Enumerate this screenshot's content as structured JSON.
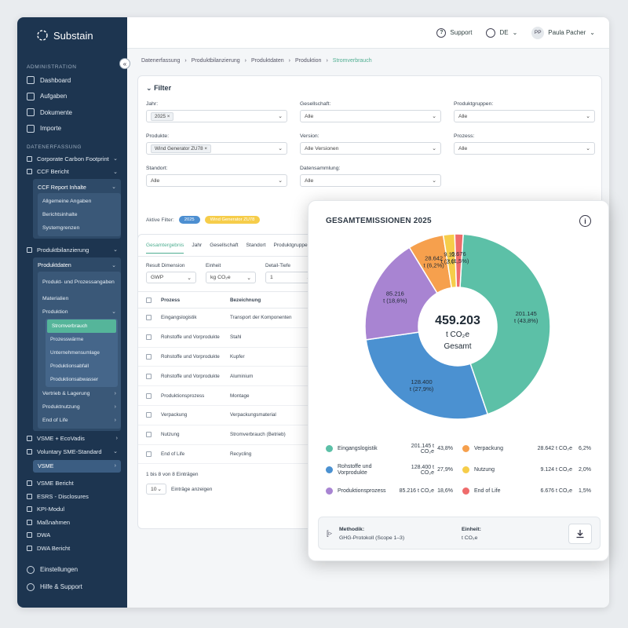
{
  "brand": {
    "name": "Substain"
  },
  "topbar": {
    "support": "Support",
    "lang": "DE",
    "initials": "PP",
    "user": "Paula Pacher"
  },
  "sidebar": {
    "admin_title": "ADMINISTRATION",
    "admin_items": [
      "Dashboard",
      "Aufgaben",
      "Dokumente",
      "Importe"
    ],
    "capture_title": "DATENERFASSUNG",
    "ccf": "Corporate Carbon Footprint",
    "ccf_bericht": "CCF Bericht",
    "ccf_report": "CCF Report Inhalte",
    "ccf_report_items": [
      "Allgemeine Angaben",
      "Berichtsinhalte",
      "Systemgrenzen"
    ],
    "produktbilanzierung": "Produktbilanzierung",
    "produktdaten": "Produktdaten",
    "produktdaten_items": [
      "Produkt- und Prozessangaben",
      "Materialien"
    ],
    "produktion": "Produktion",
    "produktion_items": [
      "Stromverbrauch",
      "Prozesswärme",
      "Unternehmensumlage",
      "Produktionsabfall",
      "Produktionsabwasser"
    ],
    "after_produktion": [
      "Vertrieb & Lagerung",
      "Produktnutzung",
      "End of Life"
    ],
    "vsme_ecovadis": "VSME + EcoVadis",
    "voluntary": "Voluntary SME-Standard",
    "vsme": "VSME",
    "lower_items": [
      "VSME Bericht",
      "ESRS - Disclosures",
      "KPI-Modul",
      "Maßnahmen",
      "DWA",
      "DWA Bericht"
    ],
    "settings": "Einstellungen",
    "help": "Hilfe & Support"
  },
  "breadcrumb": [
    "Datenerfassung",
    "Produktbilanzierung",
    "Produktdaten",
    "Produktion",
    "Stromverbrauch"
  ],
  "filter": {
    "title": "Filter",
    "jahr_label": "Jahr:",
    "jahr_chip": "2025",
    "gesellschaft_label": "Gesellschaft:",
    "gesellschaft_value": "Alle",
    "produktgruppen_label": "Produktgruppen:",
    "produktgruppen_value": "Alle",
    "produkte_label": "Produkte:",
    "produkte_chip": "Wind Generator ZU78",
    "version_label": "Version:",
    "version_value": "Alle Versionen",
    "prozess_label": "Prozess:",
    "prozess_value": "Alle",
    "standort_label": "Standort:",
    "standort_value": "Alle",
    "datensammlung_label": "Datensammlung:",
    "datensammlung_value": "Alle",
    "active_label": "Aktive Filter:",
    "active_1": "2025",
    "active_2": "Wind Generator ZU78"
  },
  "table": {
    "tabs": [
      "Gesamtergebnis",
      "Jahr",
      "Gesellschaft",
      "Standort",
      "Produktgruppen"
    ],
    "result_dim_label": "Result Dimension",
    "result_dim_value": "GWP",
    "einheit_label": "Einheit",
    "einheit_value": "kg CO₂e",
    "detail_label": "Detail-Tiefe",
    "detail_value": "1",
    "col_prozess": "Prozess",
    "col_bezeichnung": "Bezeichnung",
    "rows": [
      {
        "p": "Eingangslogistik",
        "b": "Transport der Komponenten"
      },
      {
        "p": "Rohstoffe und Vorprodukte",
        "b": "Stahl"
      },
      {
        "p": "Rohstoffe und Vorprodukte",
        "b": "Kupfer"
      },
      {
        "p": "Rohstoffe und Vorprodukte",
        "b": "Aluminium"
      },
      {
        "p": "Produktionsprozess",
        "b": "Montage"
      },
      {
        "p": "Verpackung",
        "b": "Verpackungsmaterial"
      },
      {
        "p": "Nutzung",
        "b": "Stromverbrauch (Betrieb)"
      },
      {
        "p": "End of Life",
        "b": "Recycling"
      }
    ],
    "summary": "1 bis 8 von 8 Einträgen",
    "page_size": "10",
    "page_size_label": "Einträge anzeigen"
  },
  "overlay": {
    "title": "GESAMTEMISSIONEN 2025",
    "total": "459.203",
    "unit": "t CO₂e",
    "total_label": "Gesamt",
    "methodik_label": "Methodik:",
    "methodik_value": "GHG-Protokoll (Scope 1–3)",
    "einheit_label": "Einheit:",
    "einheit_value": "t CO₂e",
    "legend": [
      {
        "name": "Eingangslogistik",
        "value": "201.145 t CO₂e",
        "pct": "43,8%",
        "color": "#5cc0a7"
      },
      {
        "name": "Verpackung",
        "value": "28.642 t CO₂e",
        "pct": "6,2%",
        "color": "#f6a04d"
      },
      {
        "name": "Rohstoffe und Vorprodukte",
        "value": "128.400 t CO₂e",
        "pct": "27,9%",
        "color": "#4b91d1"
      },
      {
        "name": "Nutzung",
        "value": "9.124 t CO₂e",
        "pct": "2,0%",
        "color": "#f6cd4a"
      },
      {
        "name": "Produktionsprozess",
        "value": "85.216 t CO₂e",
        "pct": "18,6%",
        "color": "#a884d2"
      },
      {
        "name": "End of Life",
        "value": "6.676 t CO₂e",
        "pct": "1,5%",
        "color": "#ef6b6b"
      }
    ]
  },
  "chart_data": {
    "type": "pie",
    "title": "GESAMTEMISSIONEN 2025",
    "categories": [
      "Eingangslogistik",
      "Rohstoffe und Vorprodukte",
      "Produktionsprozess",
      "Verpackung",
      "Nutzung",
      "End of Life"
    ],
    "values": [
      201.145,
      128.4,
      85.216,
      28.642,
      9.124,
      6.676
    ],
    "value_labels": [
      "201.145",
      "128.400",
      "85.216",
      "28.642",
      "9.124",
      "6.676"
    ],
    "percent_labels": [
      "t (43,8%)",
      "t (27,9%)",
      "t (18,6%)",
      "t (6,2%)",
      "t (2,0%)",
      "t (1,5%)"
    ],
    "colors": [
      "#5cc0a7",
      "#4b91d1",
      "#a884d2",
      "#f6a04d",
      "#f6cd4a",
      "#ef6b6b"
    ]
  }
}
